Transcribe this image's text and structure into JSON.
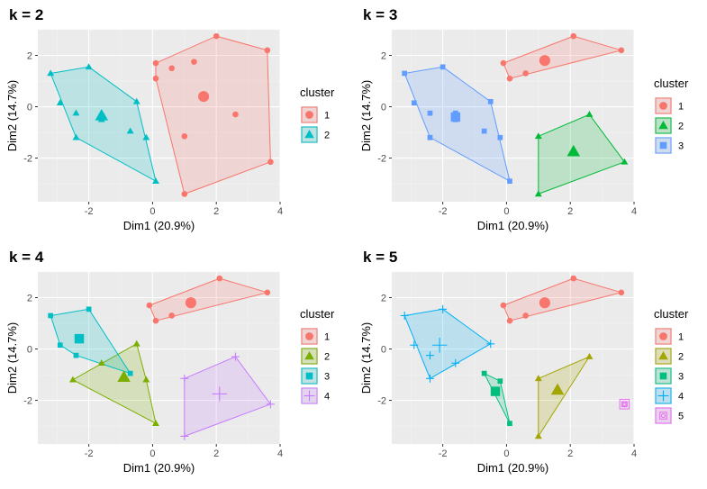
{
  "colors": {
    "panel_bg": "#ebebeb",
    "grid_major": "#ffffff",
    "grid_minor": "#f3f3f3",
    "axis_text": "#4d4d4d",
    "cluster_palettes": {
      "2": [
        "#F8766D",
        "#00BFC4"
      ],
      "3": [
        "#F8766D",
        "#00BA38",
        "#619CFF"
      ],
      "4": [
        "#F8766D",
        "#7CAE00",
        "#00BFC4",
        "#C77CFF"
      ],
      "5": [
        "#F8766D",
        "#A3A500",
        "#00BF7D",
        "#00B0F6",
        "#E76BF3"
      ]
    }
  },
  "chart_data": [
    {
      "type": "scatter",
      "title": "k = 2",
      "xlabel": "Dim1 (20.9%)",
      "ylabel": "Dim2 (14.7%)",
      "xlim": [
        -3.6,
        4.0
      ],
      "ylim": [
        -3.7,
        3.0
      ],
      "xticks": [
        -2,
        0,
        2,
        4
      ],
      "yticks": [
        -2,
        0,
        2
      ],
      "grid": true,
      "legend": {
        "title": "cluster",
        "position": "right",
        "entries": [
          "1",
          "2"
        ],
        "shapes": [
          "circle",
          "triangle"
        ]
      },
      "clusters": [
        {
          "name": "1",
          "shape": "circle",
          "points": [
            [
              0.1,
              1.7
            ],
            [
              0.1,
              1.1
            ],
            [
              0.6,
              1.5
            ],
            [
              1.3,
              1.75
            ],
            [
              2.6,
              -0.3
            ],
            [
              1.0,
              -1.15
            ],
            [
              1.0,
              -3.4
            ],
            [
              2.0,
              2.75
            ],
            [
              3.6,
              2.2
            ],
            [
              3.7,
              -2.15
            ]
          ],
          "hull": [
            [
              0.1,
              1.7
            ],
            [
              2.0,
              2.75
            ],
            [
              3.6,
              2.2
            ],
            [
              3.7,
              -2.15
            ],
            [
              1.0,
              -3.4
            ],
            [
              0.1,
              1.1
            ]
          ],
          "center": [
            1.6,
            0.4
          ]
        },
        {
          "name": "2",
          "shape": "triangle",
          "points": [
            [
              -3.2,
              1.3
            ],
            [
              -2.0,
              1.55
            ],
            [
              -2.9,
              0.15
            ],
            [
              -2.4,
              -0.25
            ],
            [
              -0.5,
              0.2
            ],
            [
              -0.7,
              -0.95
            ],
            [
              -0.2,
              -1.2
            ],
            [
              0.1,
              -2.9
            ],
            [
              -2.4,
              -1.2
            ],
            [
              -1.6,
              -0.5
            ],
            [
              -1.6,
              -0.25
            ]
          ],
          "hull": [
            [
              -3.2,
              1.3
            ],
            [
              -2.0,
              1.55
            ],
            [
              -0.5,
              0.2
            ],
            [
              0.1,
              -2.9
            ],
            [
              -2.4,
              -1.2
            ]
          ],
          "center": [
            -1.6,
            -0.35
          ]
        }
      ]
    },
    {
      "type": "scatter",
      "title": "k = 3",
      "xlabel": "Dim1 (20.9%)",
      "ylabel": "Dim2 (14.7%)",
      "xlim": [
        -3.6,
        4.0
      ],
      "ylim": [
        -3.7,
        3.0
      ],
      "xticks": [
        -2,
        0,
        2,
        4
      ],
      "yticks": [
        -2,
        0,
        2
      ],
      "grid": true,
      "legend": {
        "title": "cluster",
        "position": "right",
        "entries": [
          "1",
          "2",
          "3"
        ],
        "shapes": [
          "circle",
          "triangle",
          "square"
        ]
      },
      "clusters": [
        {
          "name": "1",
          "shape": "circle",
          "points": [
            [
              -0.1,
              1.7
            ],
            [
              0.1,
              1.1
            ],
            [
              0.6,
              1.3
            ],
            [
              1.2,
              1.75
            ],
            [
              2.1,
              2.75
            ],
            [
              3.6,
              2.2
            ]
          ],
          "hull": [
            [
              -0.1,
              1.7
            ],
            [
              2.1,
              2.75
            ],
            [
              3.6,
              2.2
            ],
            [
              0.1,
              1.1
            ]
          ],
          "center": [
            1.2,
            1.8
          ]
        },
        {
          "name": "2",
          "shape": "triangle",
          "points": [
            [
              1.0,
              -1.15
            ],
            [
              2.6,
              -0.3
            ],
            [
              3.7,
              -2.15
            ],
            [
              1.0,
              -3.4
            ]
          ],
          "hull": [
            [
              1.0,
              -1.15
            ],
            [
              2.6,
              -0.3
            ],
            [
              3.7,
              -2.15
            ],
            [
              1.0,
              -3.4
            ]
          ],
          "center": [
            2.1,
            -1.75
          ]
        },
        {
          "name": "3",
          "shape": "square",
          "points": [
            [
              -3.2,
              1.3
            ],
            [
              -2.0,
              1.55
            ],
            [
              -2.9,
              0.15
            ],
            [
              -2.4,
              -0.25
            ],
            [
              -0.5,
              0.2
            ],
            [
              -0.7,
              -0.95
            ],
            [
              -0.2,
              -1.2
            ],
            [
              0.1,
              -2.9
            ],
            [
              -2.4,
              -1.2
            ],
            [
              -1.6,
              -0.5
            ],
            [
              -1.6,
              -0.25
            ]
          ],
          "hull": [
            [
              -3.2,
              1.3
            ],
            [
              -2.0,
              1.55
            ],
            [
              -0.5,
              0.2
            ],
            [
              0.1,
              -2.9
            ],
            [
              -2.4,
              -1.2
            ]
          ],
          "center": [
            -1.6,
            -0.4
          ]
        }
      ]
    },
    {
      "type": "scatter",
      "title": "k = 4",
      "xlabel": "Dim1 (20.9%)",
      "ylabel": "Dim2 (14.7%)",
      "xlim": [
        -3.6,
        4.0
      ],
      "ylim": [
        -3.7,
        3.0
      ],
      "xticks": [
        -2,
        0,
        2,
        4
      ],
      "yticks": [
        -2,
        0,
        2
      ],
      "grid": true,
      "legend": {
        "title": "cluster",
        "position": "right",
        "entries": [
          "1",
          "2",
          "3",
          "4"
        ],
        "shapes": [
          "circle",
          "triangle",
          "square",
          "plus"
        ]
      },
      "clusters": [
        {
          "name": "1",
          "shape": "circle",
          "points": [
            [
              -0.1,
              1.7
            ],
            [
              0.1,
              1.1
            ],
            [
              0.6,
              1.3
            ],
            [
              2.1,
              2.75
            ],
            [
              3.6,
              2.2
            ]
          ],
          "hull": [
            [
              -0.1,
              1.7
            ],
            [
              2.1,
              2.75
            ],
            [
              3.6,
              2.2
            ],
            [
              0.1,
              1.1
            ]
          ],
          "center": [
            1.2,
            1.8
          ]
        },
        {
          "name": "2",
          "shape": "triangle",
          "points": [
            [
              -0.5,
              0.2
            ],
            [
              -1.6,
              -0.55
            ],
            [
              -2.5,
              -1.2
            ],
            [
              -0.2,
              -1.2
            ],
            [
              0.1,
              -2.9
            ]
          ],
          "hull": [
            [
              -0.5,
              0.2
            ],
            [
              -0.2,
              -1.2
            ],
            [
              0.1,
              -2.9
            ],
            [
              -2.5,
              -1.2
            ]
          ],
          "center": [
            -0.9,
            -1.1
          ]
        },
        {
          "name": "3",
          "shape": "square",
          "points": [
            [
              -3.2,
              1.3
            ],
            [
              -2.0,
              1.55
            ],
            [
              -2.9,
              0.15
            ],
            [
              -2.4,
              -0.25
            ],
            [
              -0.7,
              -0.95
            ]
          ],
          "hull": [
            [
              -3.2,
              1.3
            ],
            [
              -2.0,
              1.55
            ],
            [
              -0.7,
              -0.95
            ],
            [
              -2.4,
              -0.25
            ],
            [
              -2.9,
              0.15
            ]
          ],
          "center": [
            -2.3,
            0.4
          ]
        },
        {
          "name": "4",
          "shape": "plus",
          "points": [
            [
              1.0,
              -1.15
            ],
            [
              2.6,
              -0.3
            ],
            [
              3.7,
              -2.15
            ],
            [
              1.0,
              -3.4
            ]
          ],
          "hull": [
            [
              1.0,
              -1.15
            ],
            [
              2.6,
              -0.3
            ],
            [
              3.7,
              -2.15
            ],
            [
              1.0,
              -3.4
            ]
          ],
          "center": [
            2.1,
            -1.75
          ]
        }
      ]
    },
    {
      "type": "scatter",
      "title": "k = 5",
      "xlabel": "Dim1 (20.9%)",
      "ylabel": "Dim2 (14.7%)",
      "xlim": [
        -3.6,
        4.0
      ],
      "ylim": [
        -3.7,
        3.0
      ],
      "xticks": [
        -2,
        0,
        2,
        4
      ],
      "yticks": [
        -2,
        0,
        2
      ],
      "grid": true,
      "legend": {
        "title": "cluster",
        "position": "right",
        "entries": [
          "1",
          "2",
          "3",
          "4",
          "5"
        ],
        "shapes": [
          "circle",
          "triangle",
          "square",
          "plus",
          "square-circle"
        ]
      },
      "clusters": [
        {
          "name": "1",
          "shape": "circle",
          "points": [
            [
              -0.1,
              1.7
            ],
            [
              0.1,
              1.1
            ],
            [
              0.6,
              1.3
            ],
            [
              2.1,
              2.75
            ],
            [
              3.6,
              2.2
            ]
          ],
          "hull": [
            [
              -0.1,
              1.7
            ],
            [
              2.1,
              2.75
            ],
            [
              3.6,
              2.2
            ],
            [
              0.1,
              1.1
            ]
          ],
          "center": [
            1.2,
            1.8
          ]
        },
        {
          "name": "2",
          "shape": "triangle",
          "points": [
            [
              1.0,
              -1.15
            ],
            [
              2.6,
              -0.3
            ],
            [
              1.0,
              -3.4
            ]
          ],
          "hull": [
            [
              1.0,
              -1.15
            ],
            [
              2.6,
              -0.3
            ],
            [
              1.0,
              -3.4
            ]
          ],
          "center": [
            1.6,
            -1.6
          ]
        },
        {
          "name": "3",
          "shape": "square",
          "points": [
            [
              -0.7,
              -0.95
            ],
            [
              -0.2,
              -1.25
            ],
            [
              0.1,
              -2.9
            ],
            [
              -0.35,
              -1.65
            ]
          ],
          "hull": [
            [
              -0.7,
              -0.95
            ],
            [
              -0.2,
              -1.25
            ],
            [
              0.1,
              -2.9
            ]
          ],
          "center": [
            -0.35,
            -1.65
          ]
        },
        {
          "name": "4",
          "shape": "plus",
          "points": [
            [
              -3.2,
              1.3
            ],
            [
              -2.0,
              1.55
            ],
            [
              -2.9,
              0.15
            ],
            [
              -2.4,
              -0.25
            ],
            [
              -0.5,
              0.2
            ],
            [
              -1.6,
              -0.55
            ],
            [
              -2.4,
              -1.15
            ]
          ],
          "hull": [
            [
              -3.2,
              1.3
            ],
            [
              -2.0,
              1.55
            ],
            [
              -0.5,
              0.2
            ],
            [
              -2.4,
              -1.15
            ]
          ],
          "center": [
            -2.1,
            0.15
          ]
        },
        {
          "name": "5",
          "shape": "square-circle",
          "points": [
            [
              3.7,
              -2.15
            ]
          ],
          "hull": [],
          "center": [
            3.7,
            -2.15
          ]
        }
      ]
    }
  ]
}
